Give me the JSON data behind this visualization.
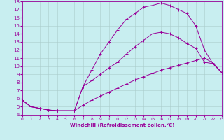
{
  "xlabel": "Windchill (Refroidissement éolien,°C)",
  "bg_color": "#c8eef0",
  "line_color": "#990099",
  "grid_color": "#aacccc",
  "xlim": [
    0,
    23
  ],
  "ylim": [
    4,
    18
  ],
  "xticks": [
    0,
    1,
    2,
    3,
    4,
    5,
    6,
    7,
    8,
    9,
    10,
    11,
    12,
    13,
    14,
    15,
    16,
    17,
    18,
    19,
    20,
    21,
    22,
    23
  ],
  "yticks": [
    4,
    5,
    6,
    7,
    8,
    9,
    10,
    11,
    12,
    13,
    14,
    15,
    16,
    17,
    18
  ],
  "line1_x": [
    0,
    1,
    2,
    3,
    4,
    5,
    6,
    7,
    8,
    9,
    10,
    11,
    12,
    13,
    14,
    15,
    16,
    17,
    18,
    19,
    20,
    21,
    22,
    23
  ],
  "line1_y": [
    5.8,
    5.0,
    4.8,
    4.6,
    4.5,
    4.5,
    4.5,
    5.2,
    5.8,
    6.3,
    6.8,
    7.3,
    7.8,
    8.3,
    8.7,
    9.1,
    9.5,
    9.8,
    10.1,
    10.4,
    10.7,
    11.0,
    10.4,
    9.2
  ],
  "line2_x": [
    0,
    1,
    2,
    3,
    4,
    5,
    6,
    7,
    8,
    9,
    10,
    11,
    12,
    13,
    14,
    15,
    16,
    17,
    18,
    19,
    20,
    21,
    22,
    23
  ],
  "line2_y": [
    5.8,
    5.0,
    4.8,
    4.6,
    4.5,
    4.5,
    4.5,
    7.5,
    8.2,
    9.0,
    9.8,
    10.5,
    11.5,
    12.4,
    13.2,
    14.0,
    14.2,
    14.0,
    13.5,
    12.8,
    12.2,
    10.5,
    10.3,
    9.2
  ],
  "line3_x": [
    0,
    1,
    2,
    3,
    4,
    5,
    6,
    7,
    8,
    9,
    10,
    11,
    12,
    13,
    14,
    15,
    16,
    17,
    18,
    19,
    20,
    21,
    22,
    23
  ],
  "line3_y": [
    5.8,
    5.0,
    4.8,
    4.6,
    4.5,
    4.5,
    4.5,
    7.5,
    9.5,
    11.5,
    13.0,
    14.5,
    15.8,
    16.5,
    17.3,
    17.5,
    17.8,
    17.5,
    17.0,
    16.5,
    15.0,
    12.0,
    10.3,
    9.2
  ]
}
